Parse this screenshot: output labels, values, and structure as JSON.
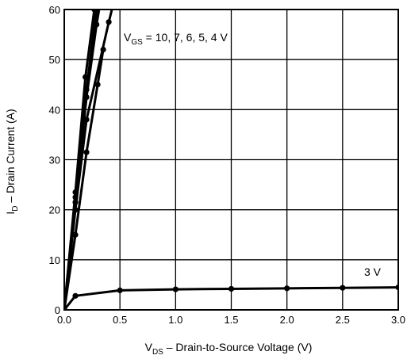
{
  "chart_data": {
    "type": "line",
    "title": "",
    "xlabel": {
      "main": "V",
      "sub": "DS",
      "rest": " – Drain-to-Source Voltage (V)"
    },
    "ylabel": {
      "main": "I",
      "sub": "D",
      "rest": " – Drain Current (A)"
    },
    "xlim": [
      0,
      3.0
    ],
    "ylim": [
      0,
      60
    ],
    "x_ticks": [
      0.0,
      0.5,
      1.0,
      1.5,
      2.0,
      2.5,
      3.0
    ],
    "x_tick_labels": [
      "0.0",
      "0.5",
      "1.0",
      "1.5",
      "2.0",
      "2.5",
      "3.0"
    ],
    "y_ticks": [
      0,
      10,
      20,
      30,
      40,
      50,
      60
    ],
    "y_tick_labels": [
      "0",
      "10",
      "20",
      "30",
      "40",
      "50",
      "60"
    ],
    "grid": true,
    "annotations": [
      {
        "id": "vgs-group",
        "main": "V",
        "sub": "GS",
        "rest": " = 10, 7, 6, 5, 4 V"
      },
      {
        "id": "vgs-3v",
        "main": "",
        "sub": "",
        "rest": "3 V"
      }
    ],
    "series": [
      {
        "label": "10 V",
        "x": [
          0,
          0.1,
          0.19,
          0.27,
          0.3
        ],
        "y": [
          0,
          23.5,
          46.5,
          60,
          62
        ]
      },
      {
        "label": "7 V",
        "x": [
          0,
          0.1,
          0.2,
          0.28,
          0.31
        ],
        "y": [
          0,
          22.5,
          44,
          58.5,
          62
        ]
      },
      {
        "label": "6 V",
        "x": [
          0,
          0.1,
          0.2,
          0.29,
          0.32
        ],
        "y": [
          0,
          21.5,
          42.5,
          57,
          61
        ]
      },
      {
        "label": "5 V",
        "x": [
          0,
          0.1,
          0.2,
          0.4,
          0.45
        ],
        "y": [
          0,
          20,
          38,
          57.5,
          62
        ]
      },
      {
        "label": "4 V",
        "x": [
          0,
          0.1,
          0.2,
          0.3,
          0.35
        ],
        "y": [
          0,
          15,
          31.5,
          45,
          52
        ]
      },
      {
        "label": "3 V",
        "x": [
          0,
          0.1,
          0.5,
          1.0,
          1.5,
          2.0,
          2.5,
          3.0
        ],
        "y": [
          0,
          2.8,
          3.9,
          4.1,
          4.2,
          4.3,
          4.4,
          4.5
        ]
      }
    ]
  }
}
